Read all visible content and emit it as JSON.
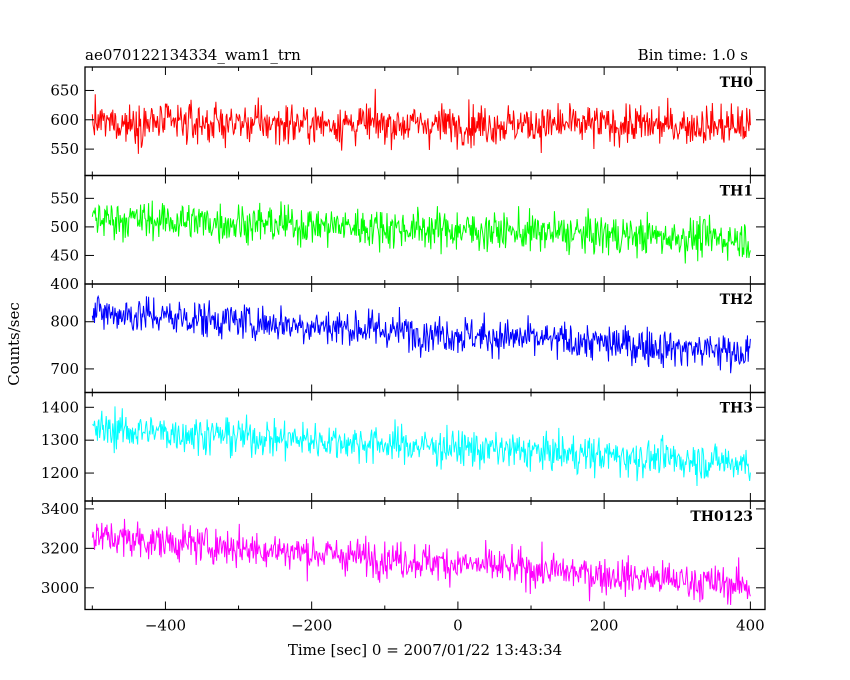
{
  "header": {
    "title": "ae070122134334_wam1_trn",
    "bin_time": "Bin time: 1.0 s"
  },
  "chart_data": {
    "type": "line",
    "title": "ae070122134334_wam1_trn",
    "subtitle": "Bin time: 1.0 s",
    "xlabel": "Time [sec] 0 = 2007/01/22 13:43:34",
    "ylabel": "Counts/sec",
    "xlim": [
      -510,
      420
    ],
    "x_ticks": [
      -400,
      -200,
      0,
      200,
      400
    ],
    "x_tick_labels": [
      "−400",
      "−200",
      "0",
      "200",
      "400"
    ],
    "x_range": [
      -500,
      400
    ],
    "bin_time_s": 1.0,
    "grid": false,
    "legend": "none",
    "panels": [
      {
        "name": "TH0",
        "color": "#ff0000",
        "ylim": [
          505,
          690
        ],
        "y_ticks": [
          550,
          600,
          650
        ],
        "y_tick_labels": [
          "550",
          "600",
          "650"
        ],
        "trend": [
          [
            -500,
            595
          ],
          [
            400,
            590
          ]
        ],
        "noise_sd": 24
      },
      {
        "name": "TH1",
        "color": "#00ff00",
        "ylim": [
          400,
          590
        ],
        "y_ticks": [
          400,
          450,
          500,
          550
        ],
        "y_tick_labels": [
          "400",
          "450",
          "500",
          "550"
        ],
        "trend": [
          [
            -500,
            515
          ],
          [
            400,
            478
          ]
        ],
        "noise_sd": 24
      },
      {
        "name": "TH2",
        "color": "#0000ff",
        "ylim": [
          650,
          880
        ],
        "y_ticks": [
          700,
          800
        ],
        "y_tick_labels": [
          "700",
          "800"
        ],
        "trend": [
          [
            -500,
            820
          ],
          [
            400,
            735
          ]
        ],
        "noise_sd": 28
      },
      {
        "name": "TH3",
        "color": "#00ffff",
        "ylim": [
          1115,
          1445
        ],
        "y_ticks": [
          1200,
          1300,
          1400
        ],
        "y_tick_labels": [
          "1200",
          "1300",
          "1400"
        ],
        "trend": [
          [
            -500,
            1335
          ],
          [
            400,
            1230
          ]
        ],
        "noise_sd": 40
      },
      {
        "name": "TH0123",
        "color": "#ff00ff",
        "ylim": [
          2890,
          3440
        ],
        "y_ticks": [
          3000,
          3200,
          3400
        ],
        "y_tick_labels": [
          "3000",
          "3200",
          "3400"
        ],
        "trend": [
          [
            -500,
            3260
          ],
          [
            400,
            3010
          ]
        ],
        "noise_sd": 65
      }
    ]
  }
}
